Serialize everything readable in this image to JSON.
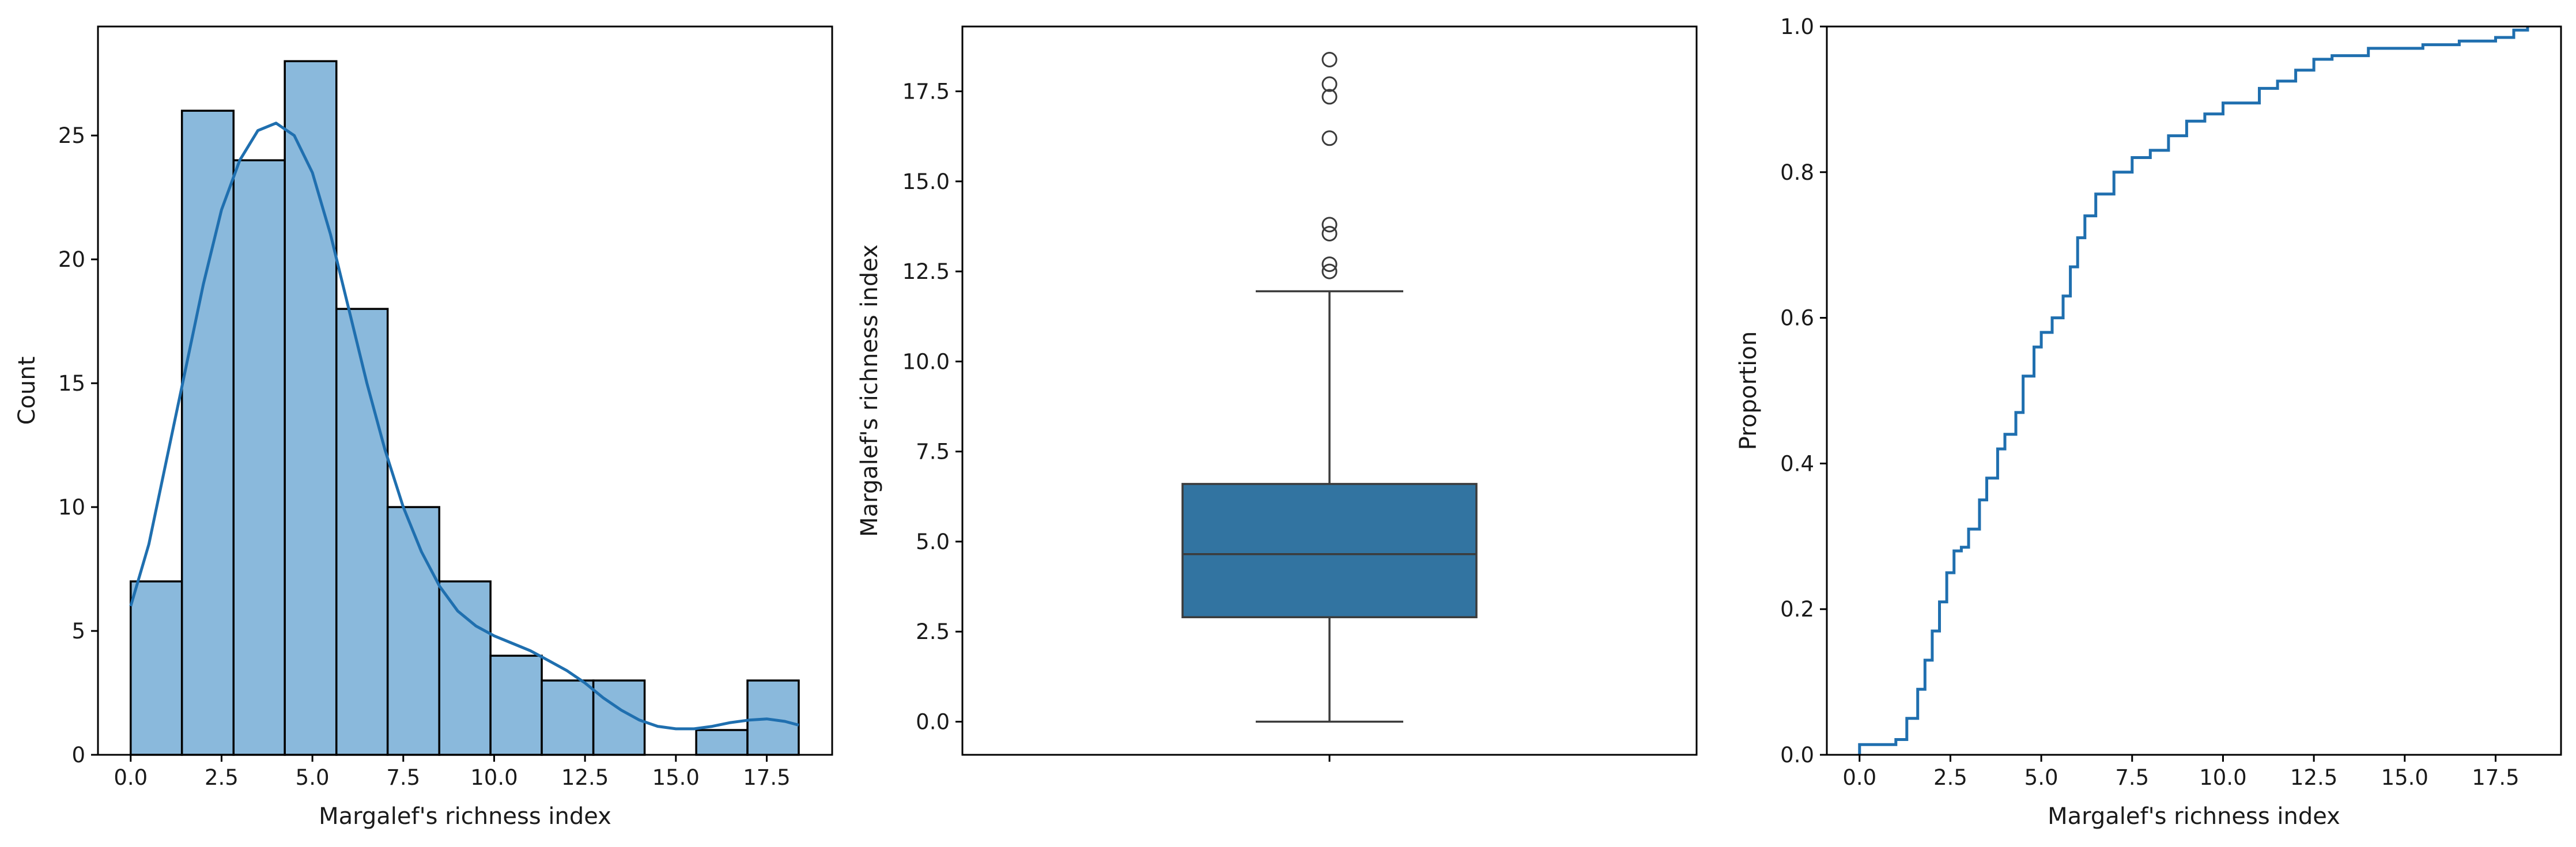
{
  "chart_data": [
    {
      "type": "bar",
      "subtype": "histogram",
      "xlabel": "Margalef's richness index",
      "ylabel": "Count",
      "xlim": [
        -0.9,
        19.3
      ],
      "ylim": [
        0,
        29.4
      ],
      "xticks": [
        0.0,
        2.5,
        5.0,
        7.5,
        10.0,
        12.5,
        15.0,
        17.5
      ],
      "xtick_labels": [
        "0.0",
        "2.5",
        "5.0",
        "7.5",
        "10.0",
        "12.5",
        "15.0",
        "17.5"
      ],
      "yticks": [
        0,
        5,
        10,
        15,
        20,
        25
      ],
      "ytick_labels": [
        "0",
        "5",
        "10",
        "15",
        "20",
        "25"
      ],
      "bin_edges": [
        0.0,
        1.41,
        2.83,
        4.24,
        5.66,
        7.07,
        8.49,
        9.9,
        11.31,
        12.73,
        14.14,
        15.56,
        16.97,
        18.38
      ],
      "values": [
        7,
        26,
        24,
        28,
        18,
        10,
        7,
        4,
        3,
        3,
        0,
        1,
        3
      ],
      "bar_color": "#8ab9dc",
      "edge_color": "#000000",
      "kde": {
        "color": "#1f6faf",
        "x": [
          0.0,
          0.5,
          1.0,
          1.5,
          2.0,
          2.5,
          3.0,
          3.5,
          4.0,
          4.5,
          5.0,
          5.5,
          6.0,
          6.5,
          7.0,
          7.5,
          8.0,
          8.5,
          9.0,
          9.5,
          10.0,
          10.5,
          11.0,
          11.5,
          12.0,
          12.5,
          13.0,
          13.5,
          14.0,
          14.5,
          15.0,
          15.5,
          16.0,
          16.5,
          17.0,
          17.5,
          18.0,
          18.38
        ],
        "y": [
          6.0,
          8.5,
          12.0,
          15.5,
          19.0,
          22.0,
          24.0,
          25.2,
          25.5,
          25.0,
          23.5,
          21.0,
          18.0,
          15.0,
          12.3,
          10.0,
          8.2,
          6.8,
          5.8,
          5.2,
          4.8,
          4.5,
          4.2,
          3.8,
          3.4,
          2.9,
          2.3,
          1.8,
          1.4,
          1.15,
          1.05,
          1.05,
          1.15,
          1.3,
          1.4,
          1.45,
          1.35,
          1.2
        ]
      }
    },
    {
      "type": "box",
      "ylabel": "Margalef's richness index",
      "xlabel": "",
      "ylim": [
        -0.92,
        19.3
      ],
      "yticks": [
        0.0,
        2.5,
        5.0,
        7.5,
        10.0,
        12.5,
        15.0,
        17.5
      ],
      "ytick_labels": [
        "0.0",
        "2.5",
        "5.0",
        "7.5",
        "10.0",
        "12.5",
        "15.0",
        "17.5"
      ],
      "whisker_low": 0.0,
      "q1": 2.9,
      "median": 4.65,
      "q3": 6.6,
      "whisker_high": 11.95,
      "outliers": [
        12.5,
        12.7,
        13.55,
        13.8,
        16.2,
        17.35,
        17.7,
        18.38
      ],
      "box_color": "#3274a1",
      "line_color": "#3b3b3b"
    },
    {
      "type": "line",
      "subtype": "ecdf",
      "xlabel": "Margalef's richness index",
      "ylabel": "Proportion",
      "xlim": [
        -0.9,
        19.3
      ],
      "ylim": [
        0.0,
        1.0
      ],
      "xticks": [
        0.0,
        2.5,
        5.0,
        7.5,
        10.0,
        12.5,
        15.0,
        17.5
      ],
      "xtick_labels": [
        "0.0",
        "2.5",
        "5.0",
        "7.5",
        "10.0",
        "12.5",
        "15.0",
        "17.5"
      ],
      "yticks": [
        0.0,
        0.2,
        0.4,
        0.6,
        0.8,
        1.0
      ],
      "ytick_labels": [
        "0.0",
        "0.2",
        "0.4",
        "0.6",
        "0.8",
        "1.0"
      ],
      "color": "#1f6faf",
      "x": [
        0.0,
        0.0,
        1.0,
        1.3,
        1.6,
        1.8,
        2.0,
        2.2,
        2.4,
        2.6,
        2.8,
        3.0,
        3.3,
        3.5,
        3.8,
        4.0,
        4.3,
        4.5,
        4.8,
        5.0,
        5.3,
        5.6,
        5.8,
        6.0,
        6.2,
        6.5,
        7.0,
        7.5,
        8.0,
        8.5,
        9.0,
        9.5,
        10.0,
        11.0,
        11.5,
        12.0,
        12.5,
        13.0,
        14.0,
        15.5,
        16.5,
        17.5,
        18.0,
        18.38
      ],
      "y": [
        0.0,
        0.014,
        0.021,
        0.05,
        0.09,
        0.13,
        0.17,
        0.21,
        0.25,
        0.28,
        0.285,
        0.31,
        0.35,
        0.38,
        0.42,
        0.44,
        0.47,
        0.52,
        0.56,
        0.58,
        0.6,
        0.63,
        0.67,
        0.71,
        0.74,
        0.77,
        0.8,
        0.82,
        0.83,
        0.85,
        0.87,
        0.88,
        0.895,
        0.915,
        0.925,
        0.94,
        0.955,
        0.96,
        0.97,
        0.975,
        0.98,
        0.985,
        0.995,
        1.0
      ]
    }
  ]
}
